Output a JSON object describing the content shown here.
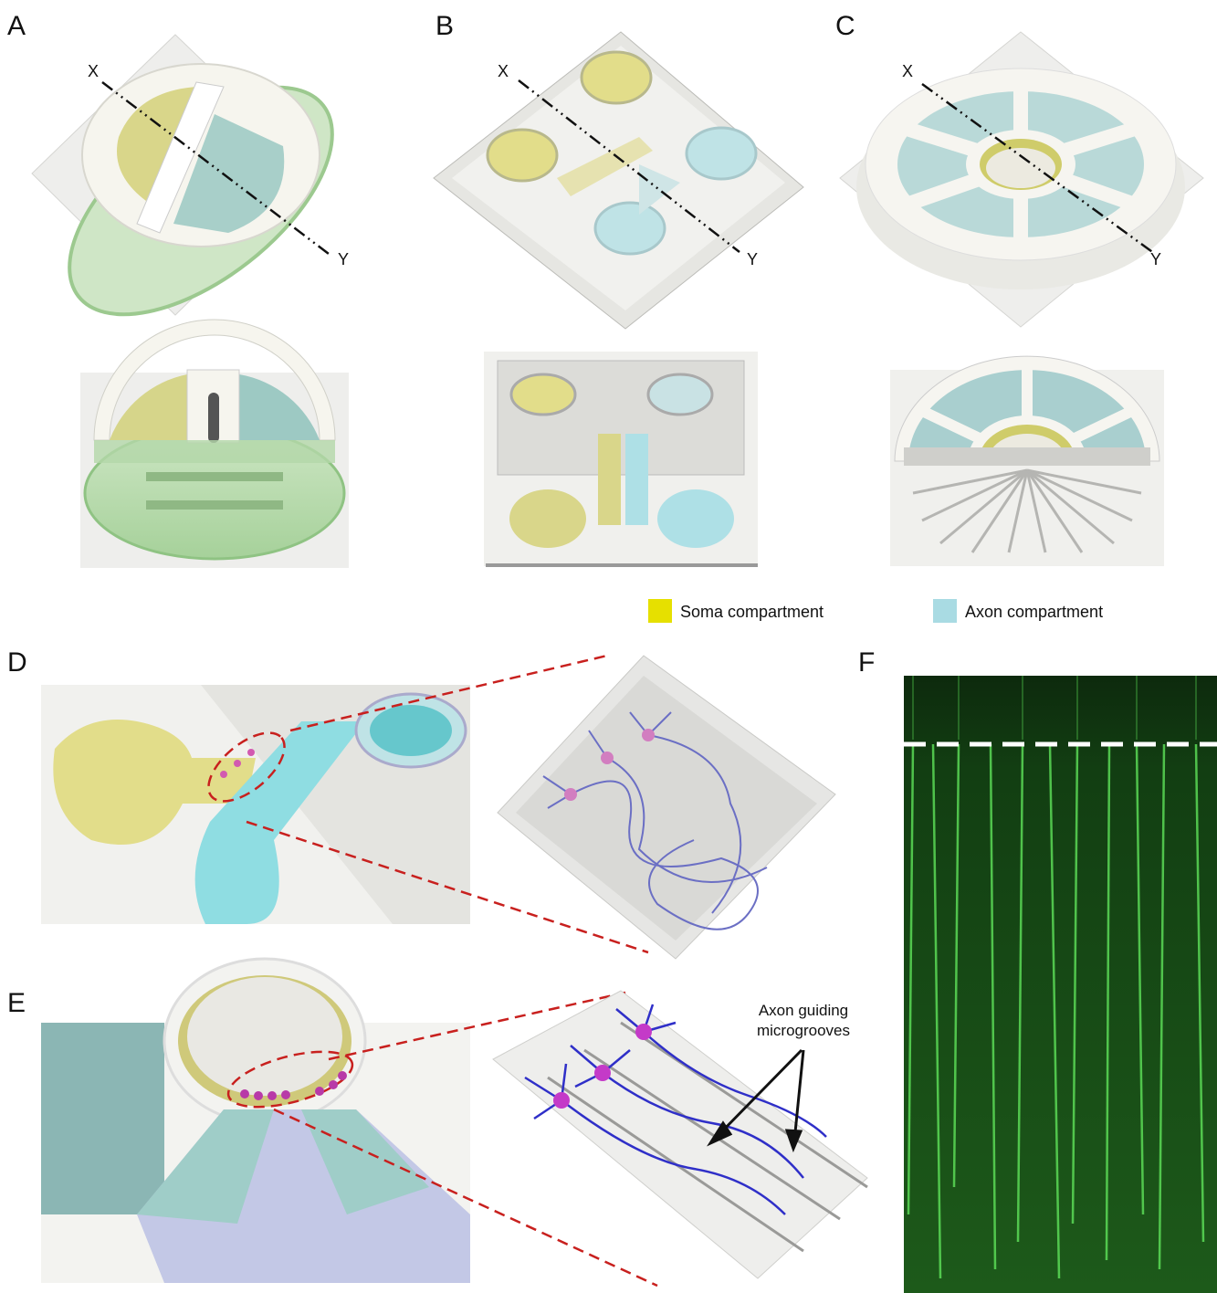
{
  "panels": [
    {
      "label": "A",
      "x_label": "X",
      "y_label": "Y"
    },
    {
      "label": "B",
      "x_label": "X",
      "y_label": "Y"
    },
    {
      "label": "C",
      "x_label": "X",
      "y_label": "Y"
    },
    {
      "label": "D"
    },
    {
      "label": "E"
    },
    {
      "label": "F"
    }
  ],
  "legend": [
    {
      "label": "Soma compartment",
      "color": "#e6e000"
    },
    {
      "label": "Axon compartment",
      "color": "#a9dbe3"
    }
  ],
  "annotation": {
    "lines": [
      "Axon guiding",
      "microgrooves"
    ]
  }
}
